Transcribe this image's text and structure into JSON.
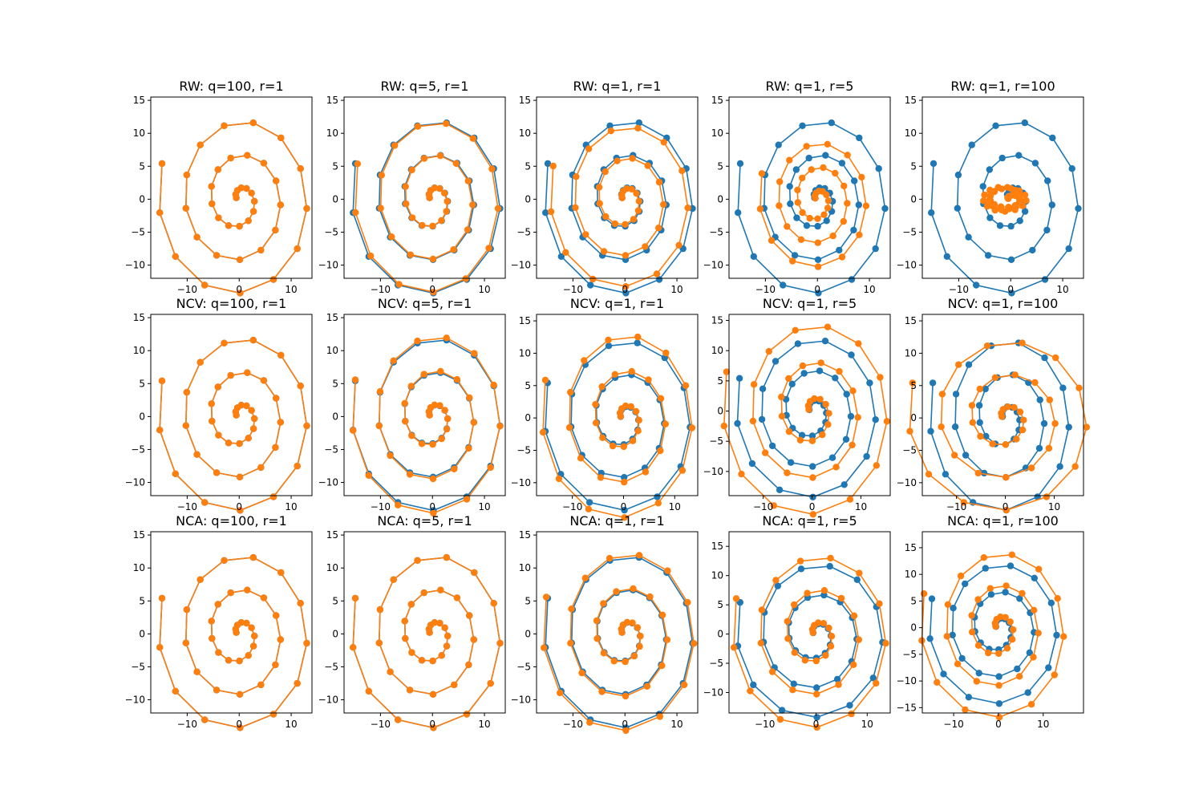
{
  "colors": {
    "series_1": "#1f77b4",
    "series_2": "#ff7f0e"
  },
  "chart_data": [
    {
      "type": "scatter",
      "title": "RW: q=100, r=1",
      "row": 0,
      "col": 0,
      "xlim": [
        -17,
        14
      ],
      "ylim": [
        -12,
        15.5
      ],
      "xticks": [
        -10,
        0,
        10
      ],
      "yticks": [
        -10,
        -5,
        0,
        5,
        10,
        15
      ],
      "variant": {
        "mode": "same",
        "a": 1,
        "b": 1,
        "dx": 0
      }
    },
    {
      "type": "scatter",
      "title": "RW: q=5, r=1",
      "row": 0,
      "col": 1,
      "xlim": [
        -17,
        14
      ],
      "ylim": [
        -12,
        15.5
      ],
      "xticks": [
        -10,
        0,
        10
      ],
      "yticks": [
        -10,
        -5,
        0,
        5,
        10,
        15
      ],
      "variant": {
        "mode": "scale",
        "a": 0.97,
        "b": 0.99,
        "dx": 0
      }
    },
    {
      "type": "scatter",
      "title": "RW: q=1, r=1",
      "row": 0,
      "col": 2,
      "xlim": [
        -17,
        14
      ],
      "ylim": [
        -12,
        15.5
      ],
      "xticks": [
        -10,
        0,
        10
      ],
      "yticks": [
        -10,
        -5,
        0,
        5,
        10,
        15
      ],
      "variant": {
        "mode": "scale",
        "a": 0.93,
        "b": 0.93,
        "dx": 0
      }
    },
    {
      "type": "scatter",
      "title": "RW: q=1, r=5",
      "row": 0,
      "col": 3,
      "xlim": [
        -17,
        14
      ],
      "ylim": [
        -12,
        15.5
      ],
      "xticks": [
        -10,
        0,
        10
      ],
      "yticks": [
        -10,
        -5,
        0,
        5,
        10,
        15
      ],
      "variant": {
        "mode": "scale",
        "a": 0.72,
        "b": 0.72,
        "dx": 0
      }
    },
    {
      "type": "scatter",
      "title": "RW: q=1, r=100",
      "row": 0,
      "col": 4,
      "xlim": [
        -17,
        14
      ],
      "ylim": [
        -12,
        15.5
      ],
      "xticks": [
        -10,
        0,
        10
      ],
      "yticks": [
        -10,
        -5,
        0,
        5,
        10,
        15
      ],
      "variant": {
        "mode": "collapse",
        "a": 0.15,
        "b": 0.35,
        "dx": 0
      }
    },
    {
      "type": "scatter",
      "title": "NCV: q=100, r=1",
      "row": 1,
      "col": 0,
      "xlim": [
        -17,
        14
      ],
      "ylim": [
        -12,
        15.5
      ],
      "xticks": [
        -10,
        0,
        10
      ],
      "yticks": [
        -10,
        -5,
        0,
        5,
        10,
        15
      ],
      "variant": {
        "mode": "same",
        "a": 1,
        "b": 1,
        "dx": 0
      }
    },
    {
      "type": "scatter",
      "title": "NCV: q=5, r=1",
      "row": 1,
      "col": 1,
      "xlim": [
        -17,
        14
      ],
      "ylim": [
        -12,
        15.5
      ],
      "xticks": [
        -10,
        0,
        10
      ],
      "yticks": [
        -10,
        -5,
        0,
        5,
        10,
        15
      ],
      "variant": {
        "mode": "scale",
        "a": 1.0,
        "b": 1.03,
        "dx": 0
      }
    },
    {
      "type": "scatter",
      "title": "NCV: q=1, r=1",
      "row": 1,
      "col": 2,
      "xlim": [
        -17,
        14.5
      ],
      "ylim": [
        -12,
        16
      ],
      "xticks": [
        -10,
        0,
        10
      ],
      "yticks": [
        -10,
        -5,
        0,
        5,
        10,
        15
      ],
      "variant": {
        "mode": "scale",
        "a": 1.03,
        "b": 1.08,
        "dx": 0
      }
    },
    {
      "type": "scatter",
      "title": "NCV: q=1, r=5",
      "row": 1,
      "col": 3,
      "xlim": [
        -17,
        16
      ],
      "ylim": [
        -14,
        16
      ],
      "xticks": [
        -10,
        0,
        10
      ],
      "yticks": [
        -10,
        -5,
        0,
        5,
        10,
        15
      ],
      "variant": {
        "mode": "scale",
        "a": 1.18,
        "b": 1.2,
        "dx": 0
      }
    },
    {
      "type": "scatter",
      "title": "NCV: q=1, r=100",
      "row": 1,
      "col": 4,
      "xlim": [
        -17,
        16
      ],
      "ylim": [
        -12,
        16
      ],
      "xticks": [
        -10,
        0,
        10
      ],
      "yticks": [
        -10,
        -5,
        0,
        5,
        10,
        15
      ],
      "variant": {
        "mode": "scale",
        "a": 1.28,
        "b": 1.0,
        "dx": 0
      }
    },
    {
      "type": "scatter",
      "title": "NCA: q=100, r=1",
      "row": 2,
      "col": 0,
      "xlim": [
        -17,
        14
      ],
      "ylim": [
        -12,
        15.5
      ],
      "xticks": [
        -10,
        0,
        10
      ],
      "yticks": [
        -10,
        -5,
        0,
        5,
        10,
        15
      ],
      "variant": {
        "mode": "same",
        "a": 1,
        "b": 1,
        "dx": 0
      }
    },
    {
      "type": "scatter",
      "title": "NCA: q=5, r=1",
      "row": 2,
      "col": 1,
      "xlim": [
        -17,
        14
      ],
      "ylim": [
        -12,
        15.5
      ],
      "xticks": [
        -10,
        0,
        10
      ],
      "yticks": [
        -10,
        -5,
        0,
        5,
        10,
        15
      ],
      "variant": {
        "mode": "scale",
        "a": 1.0,
        "b": 1.0,
        "dx": 0
      }
    },
    {
      "type": "scatter",
      "title": "NCA: q=1, r=1",
      "row": 2,
      "col": 2,
      "xlim": [
        -17,
        14
      ],
      "ylim": [
        -12,
        15.5
      ],
      "xticks": [
        -10,
        0,
        10
      ],
      "yticks": [
        -10,
        -5,
        0,
        5,
        10,
        15
      ],
      "variant": {
        "mode": "scale",
        "a": 1.02,
        "b": 1.03,
        "dx": 0
      }
    },
    {
      "type": "scatter",
      "title": "NCA: q=1, r=5",
      "row": 2,
      "col": 3,
      "xlim": [
        -17,
        14.5
      ],
      "ylim": [
        -13.5,
        17.5
      ],
      "xticks": [
        -10,
        0,
        10
      ],
      "yticks": [
        -10,
        -5,
        0,
        5,
        10,
        15
      ],
      "variant": {
        "mode": "scale",
        "a": 1.05,
        "b": 1.12,
        "dx": 0
      }
    },
    {
      "type": "scatter",
      "title": "NCA: q=1, r=100",
      "row": 2,
      "col": 4,
      "xlim": [
        -17,
        19
      ],
      "ylim": [
        -16,
        18
      ],
      "xticks": [
        -10,
        0,
        10
      ],
      "yticks": [
        -15,
        -10,
        -5,
        0,
        5,
        10,
        15
      ],
      "variant": {
        "mode": "scale",
        "a": 1.12,
        "b": 1.18,
        "dx": 0
      }
    }
  ]
}
